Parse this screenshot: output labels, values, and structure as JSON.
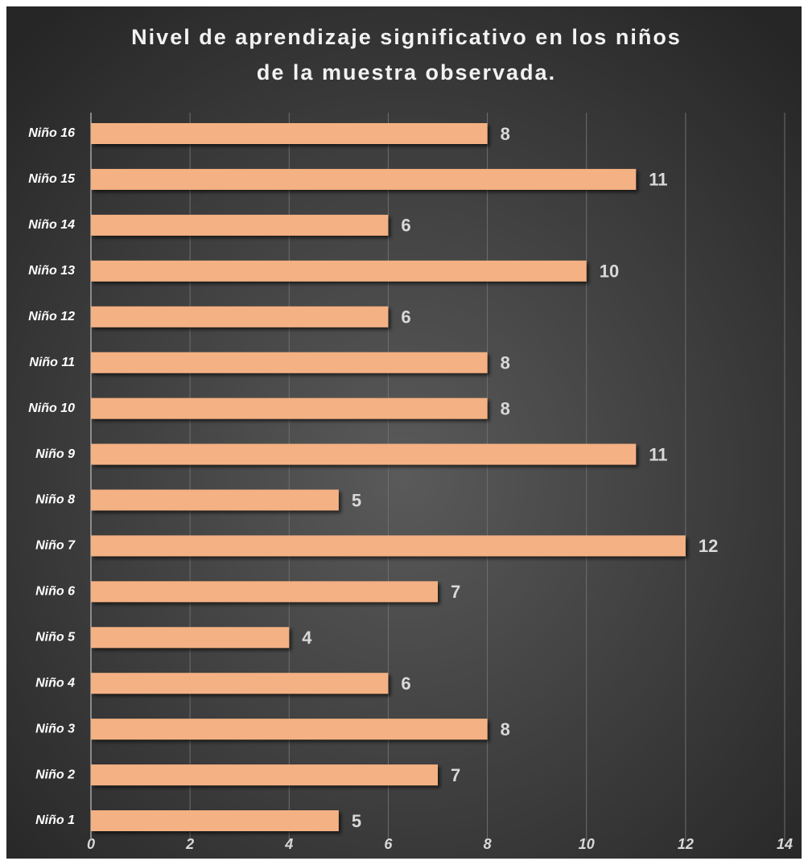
{
  "chart_data": {
    "type": "bar",
    "orientation": "horizontal",
    "title": "Nivel de aprendizaje significativo en los niños de la muestra observada.",
    "categories": [
      "Niño 1",
      "Niño 2",
      "Niño 3",
      "Niño 4",
      "Niño 5",
      "Niño 6",
      "Niño 7",
      "Niño 8",
      "Niño 9",
      "Niño 10",
      "Niño 11",
      "Niño 12",
      "Niño 13",
      "Niño 14",
      "Niño 15",
      "Niño 16"
    ],
    "values": [
      5,
      7,
      8,
      6,
      4,
      7,
      12,
      5,
      11,
      8,
      8,
      6,
      10,
      6,
      11,
      8
    ],
    "color": "#f4b183",
    "xlim": [
      0,
      14
    ],
    "xticks": [
      0,
      2,
      4,
      6,
      8,
      10,
      12,
      14
    ],
    "grid": true
  }
}
